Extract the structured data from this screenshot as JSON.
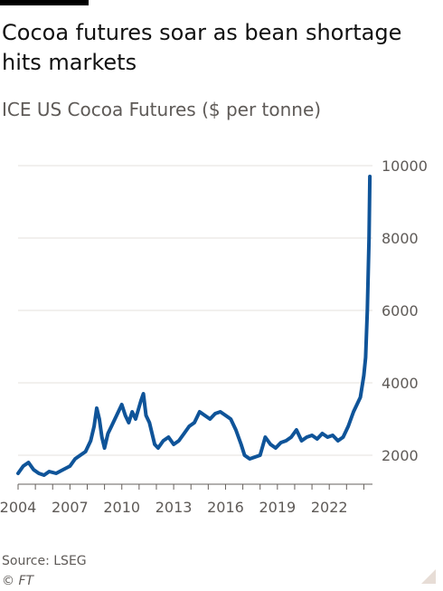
{
  "header": {
    "title": "Cocoa futures soar as bean shortage hits markets",
    "subtitle": "ICE US Cocoa Futures ($ per tonne)"
  },
  "footer": {
    "source": "Source: LSEG",
    "copyright": "© FT"
  },
  "colors": {
    "line": "#0f5499",
    "grid": "#e6e2dc",
    "tick_text": "#5e5a57"
  },
  "chart_data": {
    "type": "line",
    "title": "ICE US Cocoa Futures ($ per tonne)",
    "xlabel": "",
    "ylabel": "",
    "ylim": [
      1200,
      10200
    ],
    "xlim": [
      2004.0,
      2024.5
    ],
    "grid": true,
    "y_axis_side": "right",
    "y_ticks": [
      2000,
      4000,
      6000,
      8000,
      10000
    ],
    "x_ticks": [
      "2004",
      "2007",
      "2010",
      "2013",
      "2016",
      "2019",
      "2022"
    ],
    "series": [
      {
        "values": [
          [
            2004.0,
            1500
          ],
          [
            2004.3,
            1700
          ],
          [
            2004.6,
            1800
          ],
          [
            2004.9,
            1600
          ],
          [
            2005.2,
            1500
          ],
          [
            2005.5,
            1450
          ],
          [
            2005.8,
            1550
          ],
          [
            2006.2,
            1500
          ],
          [
            2006.6,
            1600
          ],
          [
            2007.0,
            1700
          ],
          [
            2007.3,
            1900
          ],
          [
            2007.6,
            2000
          ],
          [
            2007.9,
            2100
          ],
          [
            2008.2,
            2400
          ],
          [
            2008.4,
            2800
          ],
          [
            2008.55,
            3300
          ],
          [
            2008.7,
            3000
          ],
          [
            2008.85,
            2500
          ],
          [
            2009.0,
            2200
          ],
          [
            2009.2,
            2600
          ],
          [
            2009.4,
            2800
          ],
          [
            2009.6,
            3000
          ],
          [
            2009.8,
            3200
          ],
          [
            2010.0,
            3400
          ],
          [
            2010.2,
            3100
          ],
          [
            2010.4,
            2900
          ],
          [
            2010.6,
            3200
          ],
          [
            2010.8,
            3000
          ],
          [
            2011.1,
            3500
          ],
          [
            2011.25,
            3700
          ],
          [
            2011.4,
            3100
          ],
          [
            2011.6,
            2900
          ],
          [
            2011.9,
            2300
          ],
          [
            2012.1,
            2200
          ],
          [
            2012.4,
            2400
          ],
          [
            2012.7,
            2500
          ],
          [
            2013.0,
            2300
          ],
          [
            2013.3,
            2400
          ],
          [
            2013.6,
            2600
          ],
          [
            2013.9,
            2800
          ],
          [
            2014.2,
            2900
          ],
          [
            2014.5,
            3200
          ],
          [
            2014.8,
            3100
          ],
          [
            2015.1,
            3000
          ],
          [
            2015.4,
            3150
          ],
          [
            2015.7,
            3200
          ],
          [
            2016.0,
            3100
          ],
          [
            2016.3,
            3000
          ],
          [
            2016.6,
            2700
          ],
          [
            2016.9,
            2300
          ],
          [
            2017.1,
            2000
          ],
          [
            2017.4,
            1900
          ],
          [
            2017.7,
            1950
          ],
          [
            2018.0,
            2000
          ],
          [
            2018.3,
            2500
          ],
          [
            2018.6,
            2300
          ],
          [
            2018.9,
            2200
          ],
          [
            2019.2,
            2350
          ],
          [
            2019.5,
            2400
          ],
          [
            2019.8,
            2500
          ],
          [
            2020.1,
            2700
          ],
          [
            2020.4,
            2400
          ],
          [
            2020.7,
            2500
          ],
          [
            2021.0,
            2550
          ],
          [
            2021.3,
            2450
          ],
          [
            2021.6,
            2600
          ],
          [
            2021.9,
            2500
          ],
          [
            2022.2,
            2550
          ],
          [
            2022.5,
            2400
          ],
          [
            2022.8,
            2500
          ],
          [
            2023.1,
            2800
          ],
          [
            2023.4,
            3200
          ],
          [
            2023.6,
            3400
          ],
          [
            2023.8,
            3600
          ],
          [
            2024.0,
            4200
          ],
          [
            2024.1,
            4700
          ],
          [
            2024.2,
            6000
          ],
          [
            2024.3,
            8000
          ],
          [
            2024.35,
            9700
          ]
        ]
      }
    ]
  }
}
